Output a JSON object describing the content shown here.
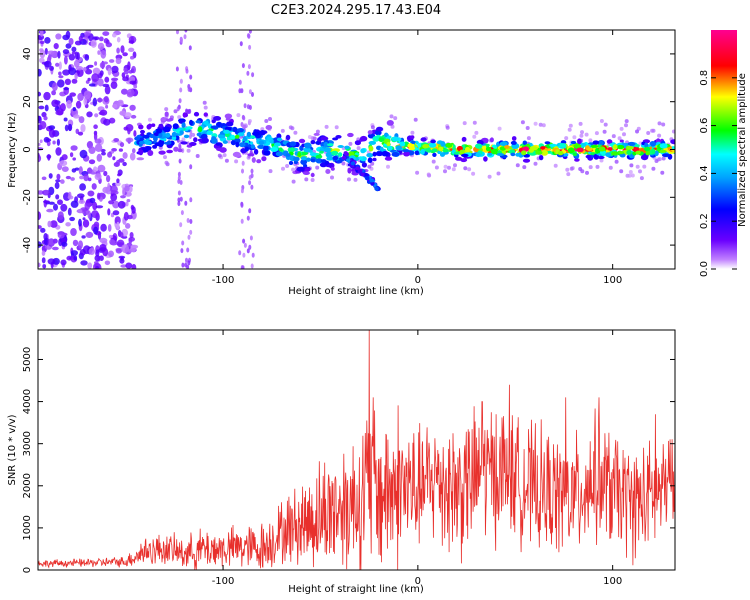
{
  "title": "C2E3.2024.295.17.43.E04",
  "colors": {
    "snr_line": "#e8302c",
    "ridge_low": "#6a00ff",
    "ridge_high": "#ff0000"
  },
  "chart_data": [
    {
      "id": "spectrogram",
      "type": "heatmap",
      "xlabel": "Height of straight line (km)",
      "ylabel": "Frequency (Hz)",
      "xlim": [
        -195,
        132
      ],
      "ylim": [
        -50,
        50
      ],
      "xticks": [
        -100,
        0,
        100
      ],
      "yticks": [
        -40,
        -20,
        0,
        20,
        40
      ],
      "colorbar": {
        "label": "Normalized spectral amplitude",
        "ticks": [
          0.0,
          0.2,
          0.4,
          0.6,
          0.8
        ],
        "range": [
          0,
          1
        ],
        "colormap": "rainbow (purple-blue-cyan-green-yellow-red-magenta)"
      },
      "ridge": {
        "x": [
          -145,
          -130,
          -120,
          -110,
          -100,
          -90,
          -80,
          -70,
          -60,
          -50,
          -40,
          -30,
          -20,
          -10,
          0,
          20,
          40,
          60,
          80,
          100,
          130
        ],
        "freq": [
          3,
          5,
          8,
          9,
          6,
          5,
          3,
          1,
          -3,
          -1,
          0,
          -3,
          3,
          2,
          1,
          0,
          0,
          0,
          0,
          0,
          0
        ],
        "amplitude": [
          0.35,
          0.45,
          0.5,
          0.5,
          0.55,
          0.5,
          0.5,
          0.55,
          0.6,
          0.6,
          0.6,
          0.55,
          0.6,
          0.7,
          0.8,
          0.85,
          0.85,
          0.9,
          0.9,
          0.85,
          0.8
        ]
      },
      "noise_region_x": [
        -195,
        -145
      ]
    },
    {
      "id": "snr",
      "type": "line",
      "xlabel": "Height of straight line (km)",
      "ylabel": "SNR (10 * v/v)",
      "xlim": [
        -195,
        132
      ],
      "ylim": [
        0,
        5700
      ],
      "xticks": [
        -100,
        0,
        100
      ],
      "yticks": [
        0,
        1000,
        2000,
        3000,
        4000,
        5000
      ],
      "envelope": {
        "x": [
          -195,
          -170,
          -150,
          -140,
          -130,
          -120,
          -110,
          -100,
          -90,
          -80,
          -70,
          -60,
          -50,
          -40,
          -30,
          -25,
          -20,
          -10,
          0,
          10,
          20,
          30,
          40,
          50,
          60,
          70,
          80,
          90,
          100,
          110,
          120,
          130
        ],
        "mean": [
          150,
          170,
          200,
          450,
          500,
          400,
          500,
          500,
          550,
          500,
          900,
          1100,
          1300,
          1500,
          1700,
          2000,
          1800,
          2000,
          1900,
          2200,
          1900,
          2200,
          2400,
          2200,
          1900,
          1800,
          1700,
          2200,
          1900,
          1600,
          1700,
          2100
        ],
        "amp": [
          100,
          120,
          150,
          450,
          450,
          450,
          600,
          550,
          650,
          650,
          900,
          1200,
          1600,
          1800,
          2100,
          2500,
          2200,
          2400,
          1700,
          1900,
          2100,
          1900,
          2000,
          1700,
          1800,
          1700,
          1700,
          1800,
          1700,
          1600,
          1600,
          1400
        ]
      },
      "peaks": [
        {
          "x": -25,
          "y": 5700
        },
        {
          "x": -23,
          "y": 4100
        },
        {
          "x": 33,
          "y": 4000
        },
        {
          "x": 47,
          "y": 4400
        },
        {
          "x": 76,
          "y": 4100
        },
        {
          "x": 93,
          "y": 4100
        },
        {
          "x": 122,
          "y": 3700
        },
        {
          "x": -80,
          "y": 1100
        }
      ]
    }
  ]
}
